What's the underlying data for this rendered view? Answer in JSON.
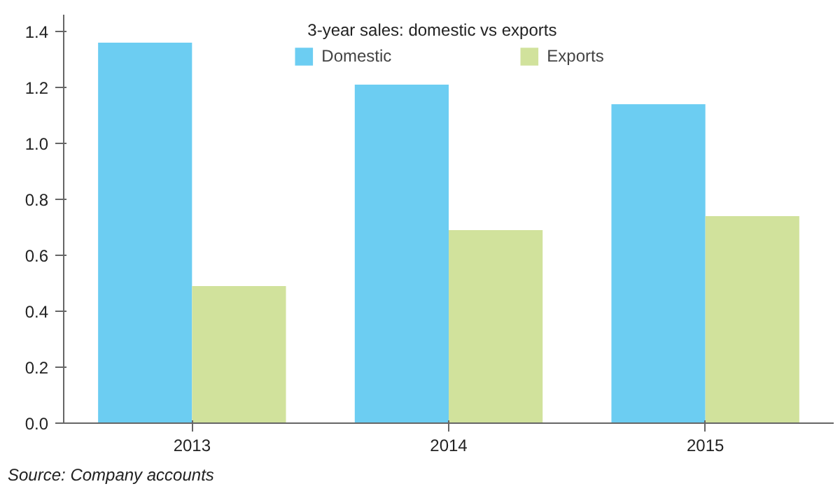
{
  "chart_data": {
    "type": "bar",
    "title": "3-year sales: domestic vs exports",
    "categories": [
      "2013",
      "2014",
      "2015"
    ],
    "series": [
      {
        "name": "Domestic",
        "color": "#6ccdf2",
        "values": [
          1.36,
          1.21,
          1.14
        ]
      },
      {
        "name": "Exports",
        "color": "#d1e29c",
        "values": [
          0.49,
          0.69,
          0.74
        ]
      }
    ],
    "ylim": [
      0,
      1.46
    ],
    "yticks": [
      {
        "value": 0,
        "label": "0.0"
      },
      0.2,
      0.4,
      0.6,
      0.8,
      {
        "value": 1,
        "label": "1.0"
      },
      1.2,
      1.4
    ],
    "grid": false,
    "legend": "top",
    "annotations": [
      "Source: Company accounts"
    ]
  }
}
